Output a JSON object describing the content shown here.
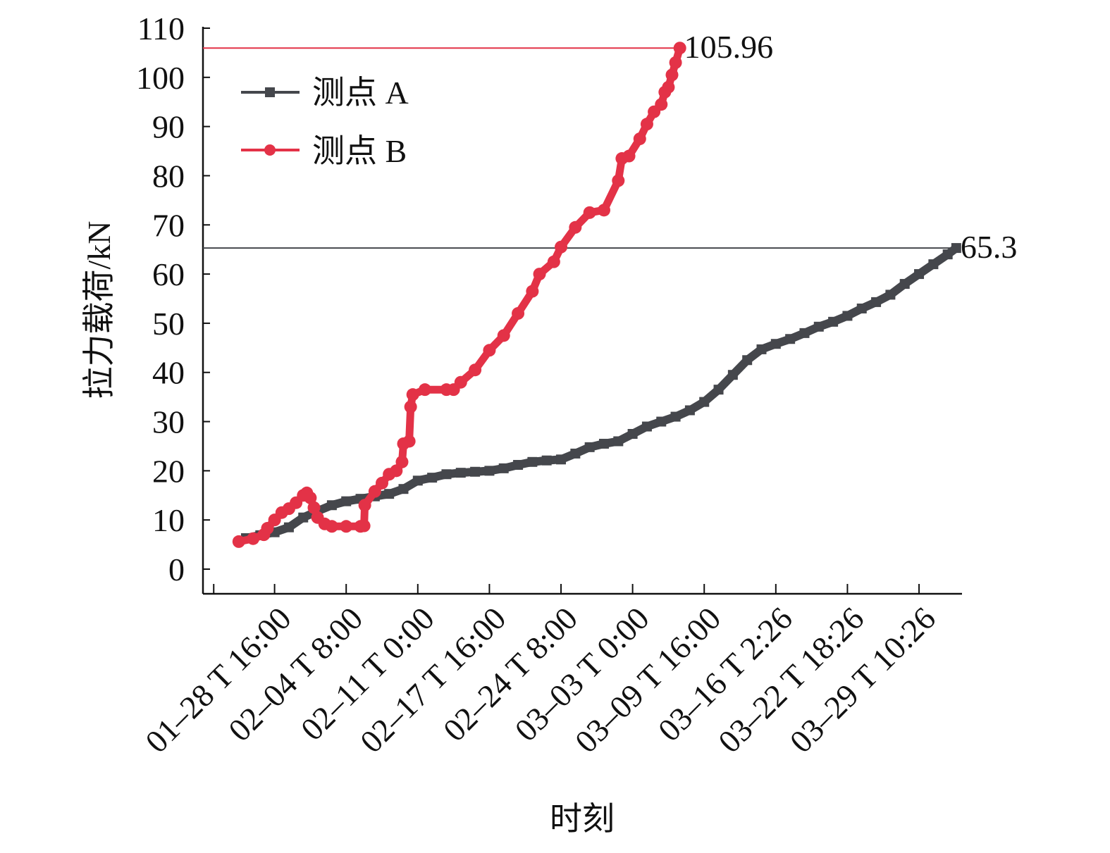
{
  "chart_data": {
    "type": "line",
    "xlabel": "时刻",
    "ylabel": "拉力载荷/kN",
    "ylim": [
      0,
      110
    ],
    "x_range": [
      0,
      106
    ],
    "x_ticks": [
      {
        "label": "01–28 T 16:00",
        "value": 10
      },
      {
        "label": "02–04 T 8:00",
        "value": 20
      },
      {
        "label": "02–11 T 0:00",
        "value": 30
      },
      {
        "label": "02–17 T 16:00",
        "value": 40
      },
      {
        "label": "02–24 T 8:00",
        "value": 50
      },
      {
        "label": "03–03 T 0:00",
        "value": 60
      },
      {
        "label": "03–09 T 16:00",
        "value": 70
      },
      {
        "label": "03–16 T 2:26",
        "value": 80
      },
      {
        "label": "03–22 T 18:26",
        "value": 90
      },
      {
        "label": "03–29 T 10:26",
        "value": 100
      }
    ],
    "y_ticks": [
      0,
      10,
      20,
      30,
      40,
      50,
      60,
      70,
      80,
      90,
      100,
      110
    ],
    "legend_position": "top-left",
    "series": [
      {
        "name": "测点 A",
        "color": "#45474c",
        "marker": "square",
        "points": [
          [
            6,
            6.3
          ],
          [
            8,
            6.9
          ],
          [
            10,
            7.5
          ],
          [
            12,
            8.5
          ],
          [
            14,
            10.5
          ],
          [
            16,
            11.8
          ],
          [
            18,
            13.0
          ],
          [
            20,
            13.8
          ],
          [
            22,
            14.3
          ],
          [
            24,
            14.8
          ],
          [
            26,
            15.3
          ],
          [
            28,
            16.3
          ],
          [
            30,
            18.0
          ],
          [
            32,
            18.6
          ],
          [
            34,
            19.3
          ],
          [
            36,
            19.6
          ],
          [
            38,
            19.8
          ],
          [
            40,
            20.0
          ],
          [
            42,
            20.5
          ],
          [
            44,
            21.2
          ],
          [
            46,
            21.8
          ],
          [
            48,
            22.1
          ],
          [
            50,
            22.3
          ],
          [
            52,
            23.5
          ],
          [
            54,
            24.8
          ],
          [
            56,
            25.5
          ],
          [
            58,
            26.0
          ],
          [
            60,
            27.5
          ],
          [
            62,
            29.0
          ],
          [
            64,
            30.0
          ],
          [
            66,
            31.0
          ],
          [
            68,
            32.3
          ],
          [
            70,
            34.0
          ],
          [
            72,
            36.5
          ],
          [
            74,
            39.5
          ],
          [
            76,
            42.5
          ],
          [
            78,
            44.7
          ],
          [
            80,
            45.8
          ],
          [
            82,
            46.8
          ],
          [
            84,
            48.0
          ],
          [
            86,
            49.3
          ],
          [
            88,
            50.3
          ],
          [
            90,
            51.5
          ],
          [
            92,
            53.0
          ],
          [
            94,
            54.3
          ],
          [
            96,
            55.8
          ],
          [
            98,
            58.0
          ],
          [
            100,
            60.0
          ],
          [
            102,
            62.0
          ],
          [
            104,
            64.0
          ],
          [
            105.2,
            65.3
          ]
        ],
        "final_label": "65.3",
        "final_value": 65.3
      },
      {
        "name": "测点 B",
        "color": "#e33247",
        "marker": "circle",
        "points": [
          [
            5,
            5.6
          ],
          [
            7,
            6.2
          ],
          [
            8.5,
            7.0
          ],
          [
            9,
            8.3
          ],
          [
            10,
            10.0
          ],
          [
            11,
            11.5
          ],
          [
            12,
            12.3
          ],
          [
            13,
            13.5
          ],
          [
            14,
            15.0
          ],
          [
            14.5,
            15.5
          ],
          [
            15,
            14.5
          ],
          [
            15.5,
            12.5
          ],
          [
            16,
            10.5
          ],
          [
            17,
            9.2
          ],
          [
            18,
            8.7
          ],
          [
            20,
            8.7
          ],
          [
            22,
            8.7
          ],
          [
            22.5,
            8.8
          ],
          [
            22.6,
            13.0
          ],
          [
            24,
            15.8
          ],
          [
            25,
            17.5
          ],
          [
            26,
            19.3
          ],
          [
            27,
            20.0
          ],
          [
            27.8,
            21.8
          ],
          [
            28,
            25.5
          ],
          [
            28.8,
            26.0
          ],
          [
            29,
            33.0
          ],
          [
            29.3,
            35.5
          ],
          [
            31,
            36.5
          ],
          [
            34,
            36.5
          ],
          [
            35,
            36.5
          ],
          [
            36,
            38.0
          ],
          [
            38,
            40.5
          ],
          [
            40,
            44.5
          ],
          [
            42,
            47.5
          ],
          [
            44,
            52.0
          ],
          [
            46,
            56.5
          ],
          [
            47,
            60.0
          ],
          [
            49,
            62.5
          ],
          [
            50,
            65.5
          ],
          [
            52,
            69.5
          ],
          [
            54,
            72.5
          ],
          [
            56,
            73.0
          ],
          [
            58,
            79.0
          ],
          [
            58.5,
            83.5
          ],
          [
            59.5,
            84.0
          ],
          [
            61,
            87.5
          ],
          [
            62,
            90.5
          ],
          [
            63,
            93.0
          ],
          [
            64,
            94.5
          ],
          [
            64.5,
            97.0
          ],
          [
            65,
            98.0
          ],
          [
            65.5,
            100.5
          ],
          [
            66,
            103.0
          ],
          [
            66.6,
            105.96
          ]
        ],
        "final_label": "105.96",
        "final_value": 105.96
      }
    ]
  }
}
